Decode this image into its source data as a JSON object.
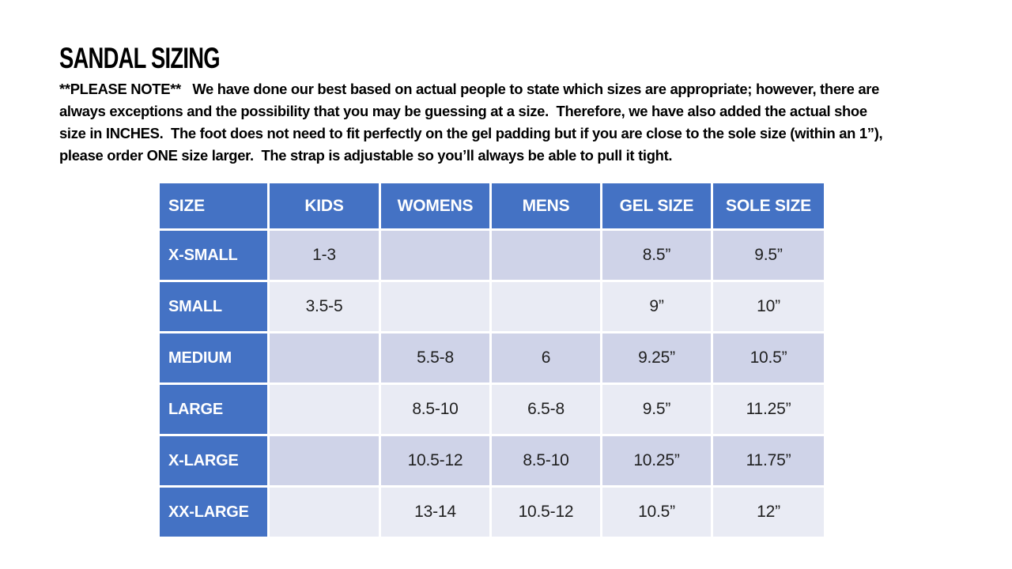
{
  "page": {
    "title": "SANDAL SIZING",
    "note_lines": [
      "**PLEASE NOTE**   We have done our best based on actual people to state which sizes are appropriate; however, there are",
      "always exceptions and the possibility that you may be guessing at a size.  Therefore, we have also added the actual shoe",
      "size in INCHES.  The foot does not need to fit perfectly on the gel padding but if you are close to the sole size (within an 1”),",
      "please order ONE size larger.  The strap is adjustable so you’ll always be able to pull it tight."
    ]
  },
  "table": {
    "headers": [
      "SIZE",
      "KIDS",
      "WOMENS",
      "MENS",
      "GEL SIZE",
      "SOLE SIZE"
    ],
    "rows": [
      [
        "X-SMALL",
        "1-3",
        "",
        "",
        "8.5”",
        "9.5”"
      ],
      [
        "SMALL",
        "3.5-5",
        "",
        "",
        "9”",
        "10”"
      ],
      [
        "MEDIUM",
        "",
        "5.5-8",
        "6",
        "9.25”",
        "10.5”"
      ],
      [
        "LARGE",
        "",
        "8.5-10",
        "6.5-8",
        "9.5”",
        "11.25”"
      ],
      [
        "X-LARGE",
        "",
        "10.5-12",
        "8.5-10",
        "10.25”",
        "11.75”"
      ],
      [
        "XX-LARGE",
        "",
        "13-14",
        "10.5-12",
        "10.5”",
        "12”"
      ]
    ]
  },
  "colors": {
    "header_blue": "#4472C4",
    "row_band_dark": "#CFD3E8",
    "row_band_light": "#E9EBF4",
    "header_text": "#FFFFFF",
    "body_text": "#1F1F1F",
    "note_text": "#000000"
  }
}
